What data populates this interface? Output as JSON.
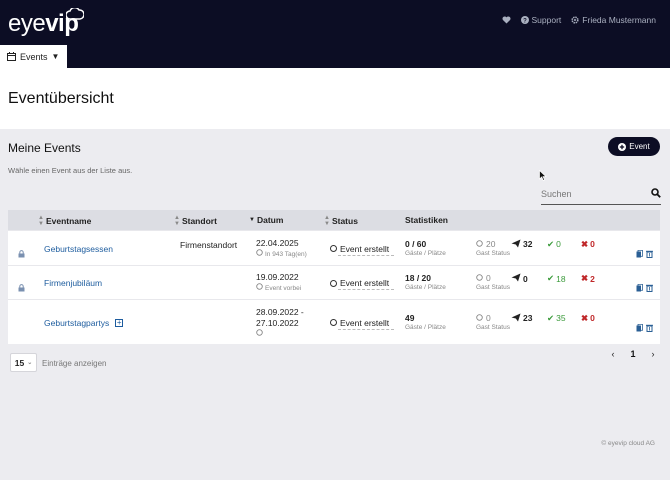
{
  "header": {
    "logo_light": "eye",
    "logo_bold": "vip",
    "support_label": "Support",
    "user_name": "Frieda Mustermann",
    "events_menu_label": "Events"
  },
  "page": {
    "title": "Eventübersicht",
    "section_title": "Meine Events",
    "section_hint": "Wähle einen Event aus der Liste aus.",
    "add_button_label": "Event",
    "search_placeholder": "Suchen"
  },
  "table": {
    "headers": {
      "name": "Eventname",
      "location": "Standort",
      "date": "Datum",
      "status": "Status",
      "stats": "Statistiken"
    },
    "rows": [
      {
        "locked": true,
        "name": "Geburtstagsessen",
        "expandable": false,
        "location": "Firmenstandort",
        "date_line1": "22.04.2025",
        "date_line2": "",
        "date_sub": "In 943 Tag(en)",
        "status": "Event erstellt",
        "seats": "0 / 60",
        "seats_label": "Gäste / Plätze",
        "guest_open": "20",
        "guest_label": "Gast Status",
        "sent": "32",
        "accepted": "0",
        "declined": "0"
      },
      {
        "locked": true,
        "name": "Firmenjubiläum",
        "expandable": false,
        "location": "",
        "date_line1": "19.09.2022",
        "date_line2": "",
        "date_sub": "Event vorbei",
        "status": "Event erstellt",
        "seats": "18 / 20",
        "seats_label": "Gäste / Plätze",
        "guest_open": "0",
        "guest_label": "Gast Status",
        "sent": "0",
        "accepted": "18",
        "declined": "2"
      },
      {
        "locked": false,
        "name": "Geburtstagpartys",
        "expandable": true,
        "location": "",
        "date_line1": "28.09.2022 -",
        "date_line2": "27.10.2022",
        "date_sub": "",
        "status": "Event erstellt",
        "seats": "49",
        "seats_label": "Gäste / Plätze",
        "guest_open": "0",
        "guest_label": "Gast Status",
        "sent": "23",
        "accepted": "35",
        "declined": "0"
      }
    ]
  },
  "pagination": {
    "page_size": "15",
    "page_size_label": "Einträge anzeigen",
    "current_page": "1"
  },
  "footer": {
    "copyright": "© eyevip cloud AG"
  },
  "colors": {
    "nav_bg": "#0c0d24",
    "link": "#1d5c9e",
    "accepted": "#3a9a3a",
    "declined": "#c0282a"
  }
}
